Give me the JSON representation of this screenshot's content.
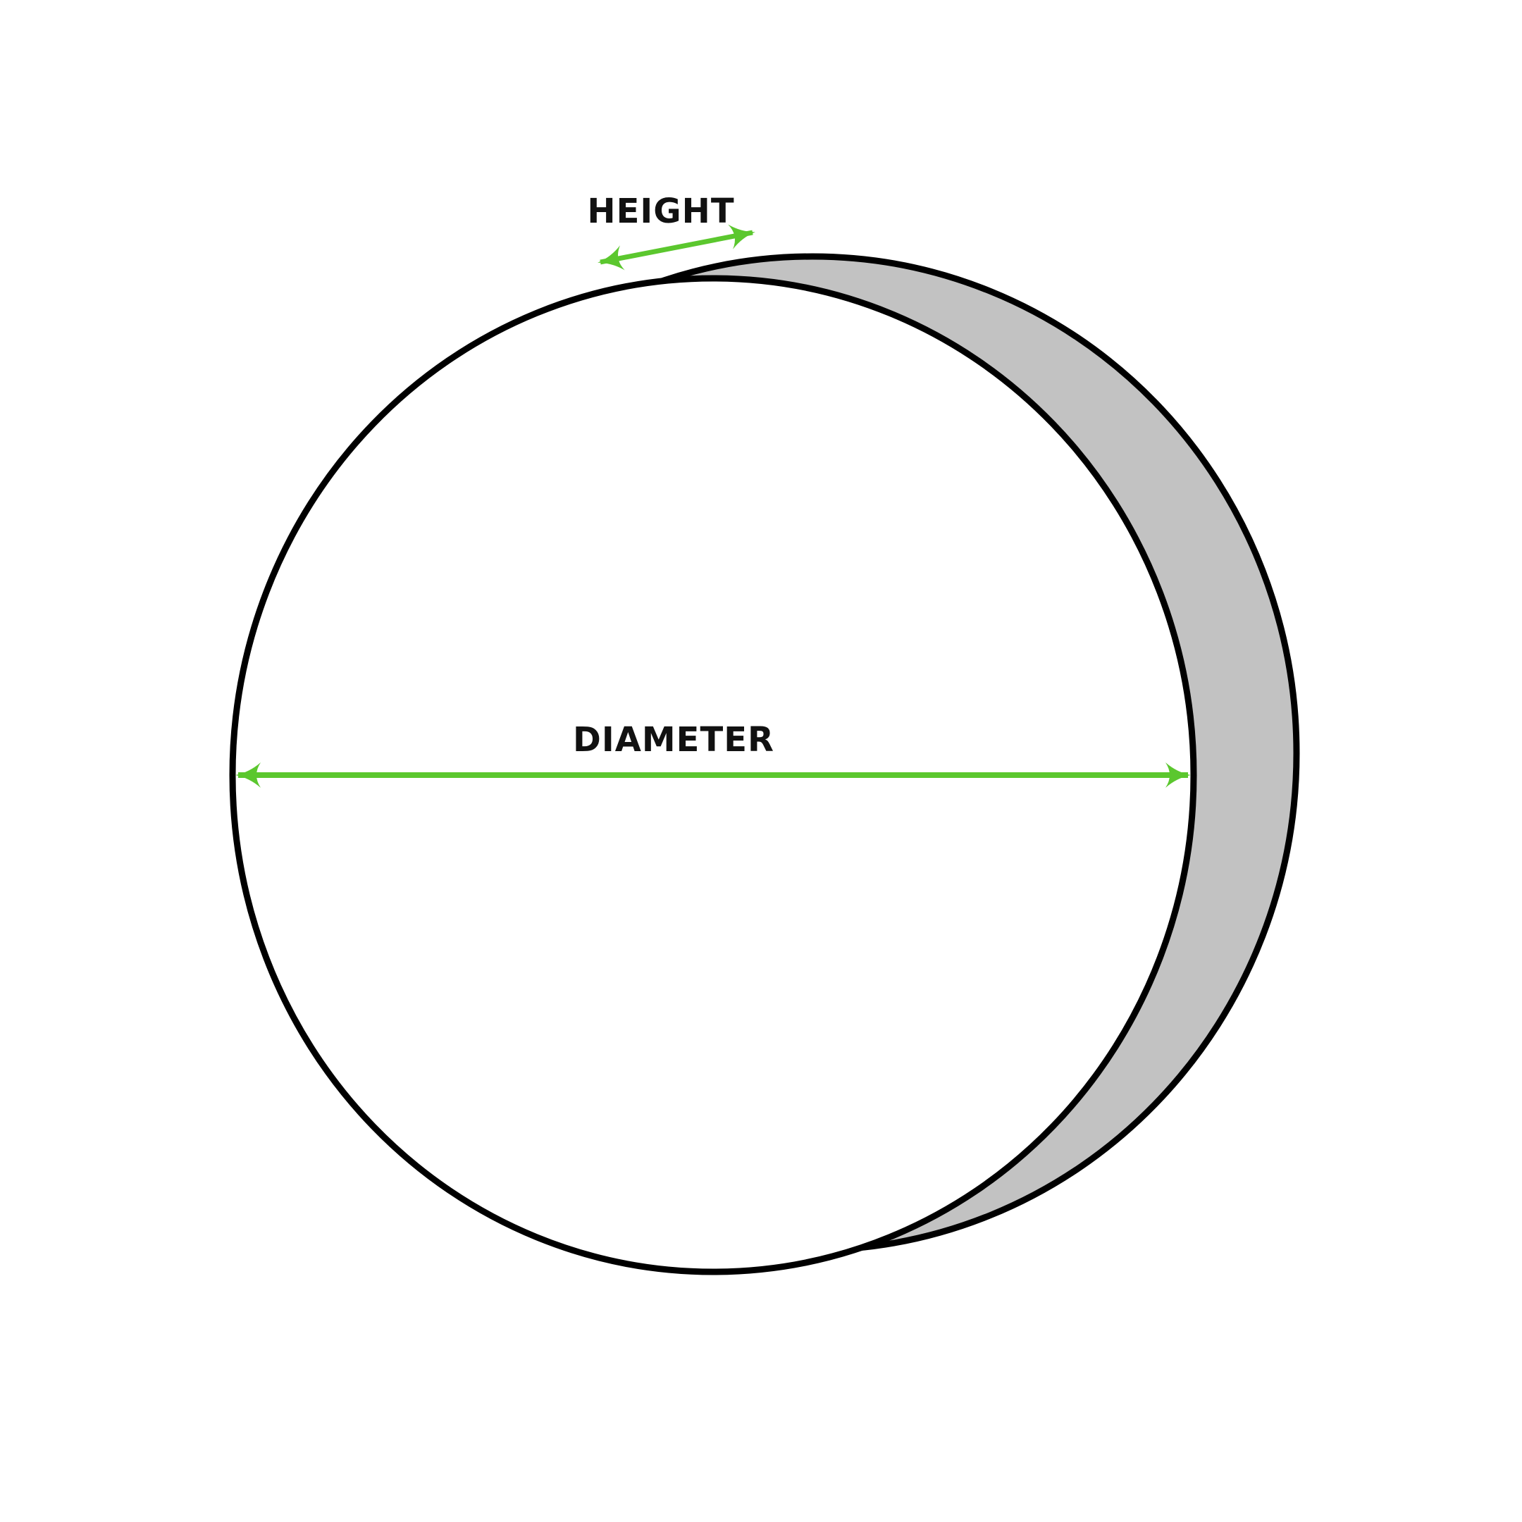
{
  "labels": {
    "height": "HEIGHT",
    "diameter": "DIAMETER"
  },
  "colors": {
    "background": "#ffffff",
    "outline": "#000000",
    "body_fill": "#c2c2c2",
    "arrow": "#5bc72e",
    "label_text": "#111111"
  }
}
